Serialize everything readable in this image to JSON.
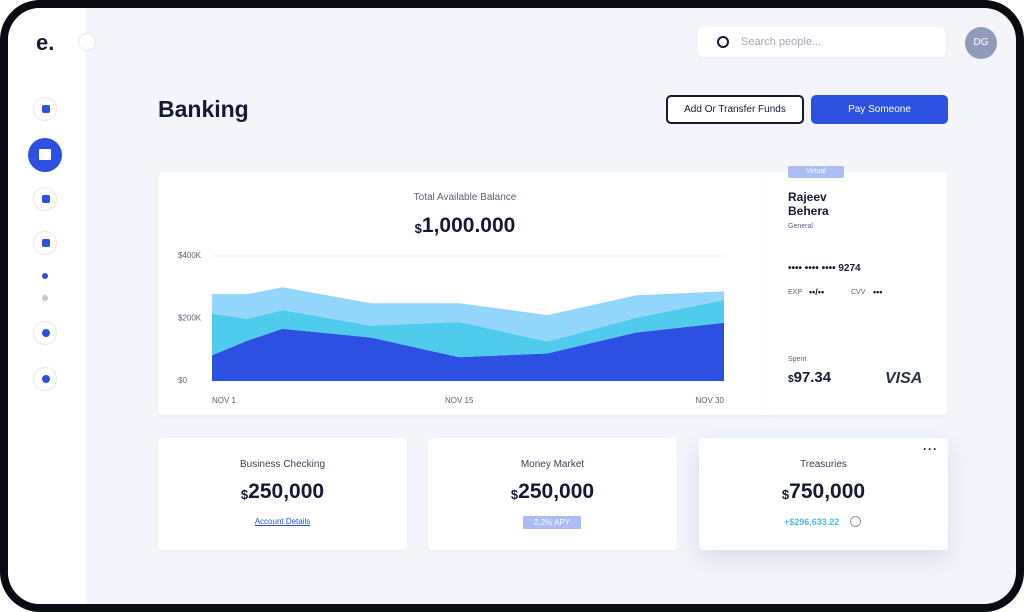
{
  "logo": "e.",
  "search_placeholder": "Search people...",
  "avatar": "DG",
  "title": "Banking",
  "buttons": [
    "Add Or Transfer Funds",
    "Pay Someone"
  ],
  "balance": {
    "label": "Total Available Balance",
    "currency": "$",
    "amount": "1,000.000"
  },
  "balance_chart": {
    "type": "area",
    "stacked": true,
    "x": [
      1,
      3,
      5,
      10,
      15,
      20,
      25,
      30
    ],
    "xlim": [
      1,
      30
    ],
    "xticks": [
      {
        "value": 1,
        "label": "NOV 1"
      },
      {
        "value": 15,
        "label": "NOV 15"
      },
      {
        "value": 30,
        "label": "NOV 30"
      }
    ],
    "ylim": [
      0,
      400000
    ],
    "yticks": [
      {
        "value": 0,
        "label": "$0"
      },
      {
        "value": 200000,
        "label": "$200K"
      },
      {
        "value": 400000,
        "label": "$400K"
      }
    ],
    "series": [
      {
        "color": "#2b50e2",
        "values": [
          82000,
          129000,
          167000,
          139000,
          76000,
          88000,
          155000,
          186000
        ]
      },
      {
        "color": "#4fcbec",
        "values": [
          133000,
          70000,
          60000,
          38000,
          113000,
          38000,
          47000,
          73000
        ]
      },
      {
        "color": "#93d6fb",
        "values": [
          63000,
          79000,
          73000,
          72000,
          60000,
          85000,
          72000,
          28000
        ]
      }
    ]
  },
  "card": {
    "tag": "Virtual",
    "name": "Rajeev Behera",
    "kind": "General",
    "number": "•••• •••• •••• 9274",
    "exp_label": "EXP",
    "exp": "••/••",
    "cvv_label": "CVV",
    "cvv": "•••",
    "spent_label": "Spent",
    "spent_currency": "$",
    "spent": "97.34",
    "brand": "VISA"
  },
  "accounts": [
    {
      "name": "Business Checking",
      "currency": "$",
      "amount": "250,000",
      "link": "Account Details"
    },
    {
      "name": "Money Market",
      "currency": "$",
      "amount": "250,000",
      "badge": "2.2% APY"
    },
    {
      "name": "Treasuries",
      "currency": "$",
      "amount": "750,000",
      "change": "+$296,633.22"
    }
  ]
}
